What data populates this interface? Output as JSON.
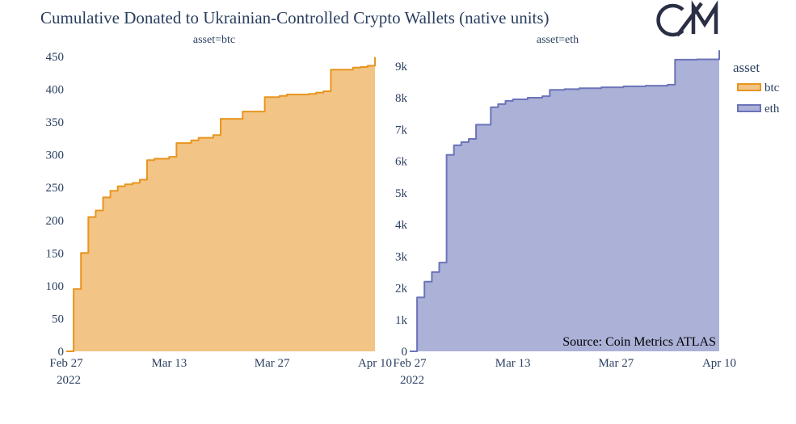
{
  "title": "Cumulative Donated to Ukrainian-Controlled Crypto Wallets (native units)",
  "logo_text": "CM",
  "source": "Source: Coin Metrics ATLAS",
  "legend": {
    "title": "asset",
    "items": [
      {
        "label": "btc",
        "color": "#e8951f"
      },
      {
        "label": "eth",
        "color": "#6b74b8"
      }
    ]
  },
  "colors": {
    "btc_line": "#e8951f",
    "btc_fill": "#f2c485",
    "eth_line": "#6b74b8",
    "eth_fill": "#abb1d7"
  },
  "chart_data": [
    {
      "type": "area",
      "subtitle": "asset=btc",
      "series": [
        {
          "name": "btc"
        }
      ],
      "x_ticks": [
        "Feb 27",
        "Mar 13",
        "Mar 27",
        "Apr 10"
      ],
      "x_tick_year": "2022",
      "y_ticks": [
        "0",
        "50",
        "100",
        "150",
        "200",
        "250",
        "300",
        "350",
        "400",
        "450"
      ],
      "xlim": [
        "2022-02-27",
        "2022-04-10"
      ],
      "ylim": [
        0,
        450
      ],
      "x": [
        "2022-02-27",
        "2022-02-28",
        "2022-02-28",
        "2022-03-01",
        "2022-03-01",
        "2022-03-02",
        "2022-03-02",
        "2022-03-03",
        "2022-03-04",
        "2022-03-05",
        "2022-03-06",
        "2022-03-07",
        "2022-03-08",
        "2022-03-09",
        "2022-03-10",
        "2022-03-10",
        "2022-03-11",
        "2022-03-13",
        "2022-03-14",
        "2022-03-14",
        "2022-03-16",
        "2022-03-17",
        "2022-03-17",
        "2022-03-19",
        "2022-03-20",
        "2022-03-20",
        "2022-03-23",
        "2022-03-23",
        "2022-03-26",
        "2022-03-26",
        "2022-03-28",
        "2022-03-29",
        "2022-03-29",
        "2022-04-01",
        "2022-04-02",
        "2022-04-03",
        "2022-04-04",
        "2022-04-04",
        "2022-04-07",
        "2022-04-08",
        "2022-04-09",
        "2022-04-09",
        "2022-04-10"
      ],
      "y": [
        0,
        35,
        95,
        115,
        150,
        175,
        205,
        215,
        235,
        245,
        252,
        255,
        257,
        262,
        262,
        292,
        294,
        297,
        300,
        318,
        322,
        325,
        326,
        330,
        330,
        355,
        362,
        366,
        366,
        388,
        390,
        392,
        392,
        393,
        395,
        397,
        402,
        430,
        433,
        434,
        435,
        436,
        449
      ]
    },
    {
      "type": "area",
      "subtitle": "asset=eth",
      "series": [
        {
          "name": "eth"
        }
      ],
      "x_ticks": [
        "Feb 27",
        "Mar 13",
        "Mar 27",
        "Apr 10"
      ],
      "x_tick_year": "2022",
      "y_ticks": [
        "0",
        "1k",
        "2k",
        "3k",
        "4k",
        "5k",
        "6k",
        "7k",
        "8k",
        "9k"
      ],
      "xlim": [
        "2022-02-27",
        "2022-04-10"
      ],
      "ylim": [
        0,
        9300
      ],
      "x": [
        "2022-02-27",
        "2022-02-28",
        "2022-03-01",
        "2022-03-01",
        "2022-03-02",
        "2022-03-03",
        "2022-03-04",
        "2022-03-04",
        "2022-03-05",
        "2022-03-06",
        "2022-03-07",
        "2022-03-08",
        "2022-03-08",
        "2022-03-10",
        "2022-03-10",
        "2022-03-11",
        "2022-03-12",
        "2022-03-13",
        "2022-03-15",
        "2022-03-17",
        "2022-03-18",
        "2022-03-18",
        "2022-03-20",
        "2022-03-22",
        "2022-03-25",
        "2022-03-28",
        "2022-03-31",
        "2022-04-03",
        "2022-04-04",
        "2022-04-04",
        "2022-04-07",
        "2022-04-10",
        "2022-04-10"
      ],
      "y": [
        0,
        1700,
        2000,
        2200,
        2500,
        2800,
        5000,
        6200,
        6500,
        6600,
        6700,
        6750,
        7150,
        7200,
        7700,
        7800,
        7900,
        7950,
        8000,
        8050,
        8100,
        8250,
        8270,
        8300,
        8330,
        8360,
        8380,
        8410,
        8440,
        9200,
        9210,
        9230,
        9500
      ]
    }
  ]
}
